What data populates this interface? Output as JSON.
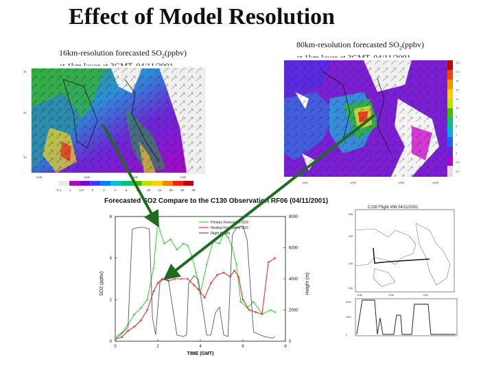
{
  "slide": {
    "title": "Effect of Model Resolution",
    "left_caption_line1": "16km-resolution forecasted SO",
    "left_caption_sub": "2",
    "left_caption_line1_end": "(ppbv)",
    "left_caption_line2": "at 1km layer at 3GMT, 04/11/2001",
    "right_caption_line1": "80km-resolution forecasted SO",
    "right_caption_sub": "2",
    "right_caption_line1_end": "(ppbv)",
    "right_caption_line2": "at 1km layer at 3GMT, 04/11/2001"
  },
  "colorbar": {
    "labels": [
      "0.1",
      "1",
      "1.5",
      "2",
      "3",
      "4",
      "6",
      "8",
      "10",
      "14",
      "20",
      "30",
      "40"
    ],
    "colors": [
      "#e8e8e8",
      "#b400c8",
      "#7a00e0",
      "#3c3cff",
      "#0080ff",
      "#00c0e0",
      "#00c080",
      "#40c000",
      "#c0e000",
      "#ffd000",
      "#ff8000",
      "#ff2000",
      "#c00000"
    ]
  },
  "right_colorbar": {
    "labels": [
      "3.5",
      "2.4",
      "18",
      "15",
      "12",
      "10",
      "9",
      "8",
      "7",
      "5",
      "4",
      "0.6",
      "0.5"
    ]
  },
  "flight_map": {
    "title": "C130 Flight #06   04/11/2001"
  },
  "chart_data": {
    "type": "line",
    "title": "Forecasted SO2 Compare to the C130 Observation RF06 (04/11/2001)",
    "xlabel": "TIME (GMT)",
    "ylabel": "SO2 (ppbv)",
    "y2label": "Height (m)",
    "xlim": [
      0,
      8
    ],
    "ylim": [
      0,
      6
    ],
    "y2lim": [
      0,
      8000
    ],
    "xticks": [
      0,
      2,
      4,
      6,
      8
    ],
    "yticks": [
      0,
      2,
      4,
      6
    ],
    "y2ticks": [
      0,
      2000,
      4000,
      6000,
      8000
    ],
    "legend": [
      "Primary Forecasted SO2",
      "Nesting Forecasted SO2",
      "Flight Height"
    ],
    "legend_position": "top-right",
    "series": [
      {
        "name": "Primary Forecasted SO2",
        "color": "#44cc44",
        "axis": "left",
        "x": [
          0.0,
          0.3,
          0.6,
          0.9,
          1.2,
          1.5,
          1.8,
          2.0,
          2.1,
          2.3,
          2.6,
          2.9,
          3.2,
          3.4,
          3.6,
          3.8,
          4.0,
          4.3,
          4.6,
          4.9,
          5.1,
          5.3,
          5.5,
          5.7,
          5.9,
          6.2,
          6.5,
          6.9,
          7.3,
          7.5
        ],
        "y": [
          0.2,
          0.4,
          0.8,
          1.3,
          1.6,
          2.0,
          3.5,
          5.8,
          5.3,
          4.7,
          4.9,
          4.4,
          4.7,
          4.6,
          4.1,
          3.3,
          2.3,
          3.7,
          4.8,
          4.7,
          5.2,
          5.0,
          4.5,
          3.7,
          1.9,
          1.6,
          1.9,
          1.3,
          1.5,
          1.4
        ]
      },
      {
        "name": "Nesting Forecasted SO2",
        "color": "#dd3333",
        "axis": "left",
        "x": [
          0.0,
          0.3,
          0.6,
          0.9,
          1.2,
          1.5,
          1.8,
          2.0,
          2.2,
          2.5,
          2.8,
          3.1,
          3.4,
          3.7,
          3.9,
          4.2,
          4.5,
          4.8,
          5.1,
          5.4,
          5.6,
          5.8,
          6.0,
          6.3,
          6.6,
          6.9,
          7.2,
          7.5
        ],
        "y": [
          0.1,
          0.2,
          0.5,
          0.7,
          1.0,
          1.5,
          2.4,
          2.8,
          3.0,
          2.9,
          3.0,
          3.0,
          3.0,
          2.7,
          2.5,
          2.1,
          2.8,
          3.2,
          3.3,
          3.1,
          3.4,
          3.1,
          2.0,
          1.5,
          1.4,
          1.3,
          3.8,
          4.0
        ]
      },
      {
        "name": "Flight Height",
        "color": "#555555",
        "axis": "right",
        "x": [
          0.0,
          0.15,
          0.4,
          0.6,
          0.8,
          1.1,
          1.35,
          1.6,
          1.75,
          1.9,
          2.1,
          2.3,
          2.5,
          2.9,
          3.2,
          3.35,
          3.45,
          3.7,
          3.9,
          4.3,
          4.5,
          4.7,
          4.9,
          5.1,
          5.3,
          5.5,
          5.7,
          6.0,
          6.2,
          6.5,
          7.0,
          7.4,
          7.5
        ],
        "y": [
          100,
          300,
          600,
          900,
          7200,
          7300,
          7300,
          7200,
          1500,
          400,
          3800,
          4000,
          3900,
          400,
          300,
          400,
          3700,
          4200,
          4000,
          400,
          400,
          1800,
          2200,
          400,
          300,
          6800,
          7300,
          7400,
          6500,
          600,
          300,
          200,
          300
        ]
      }
    ]
  }
}
